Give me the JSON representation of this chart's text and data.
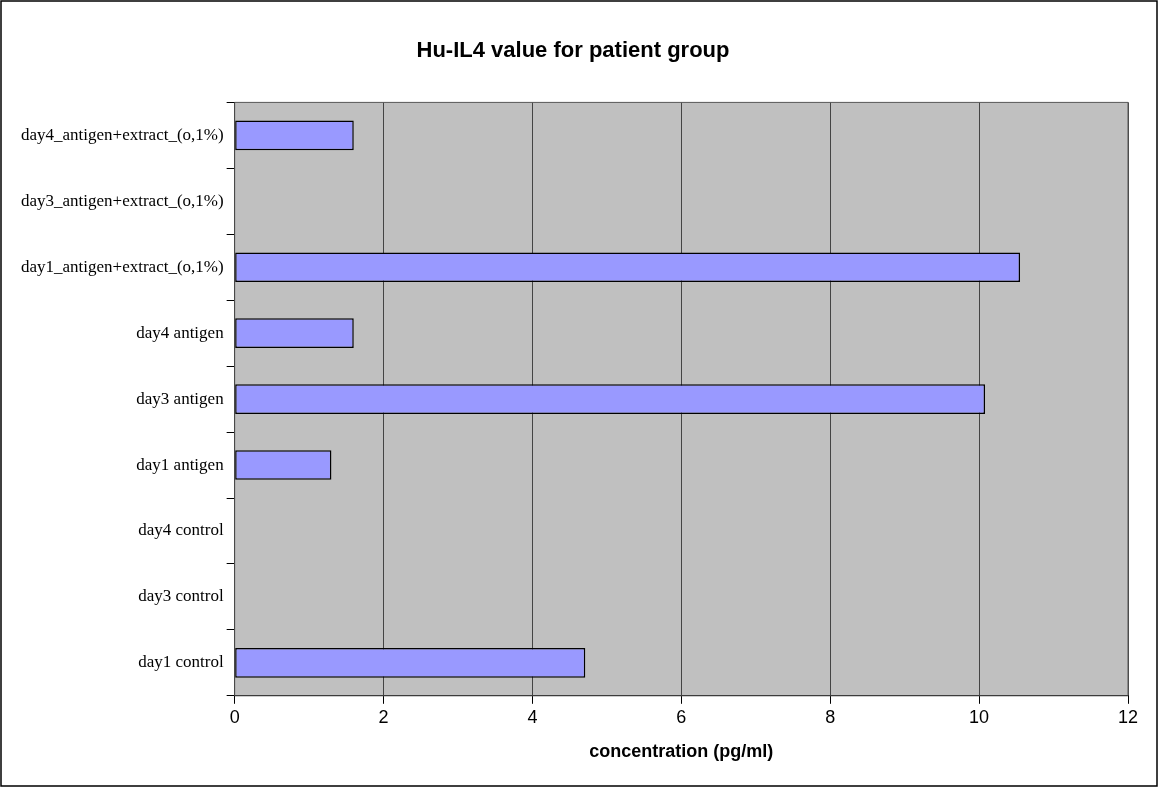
{
  "chart_data": {
    "type": "bar",
    "orientation": "horizontal",
    "title": "Hu-IL4 value for patient group",
    "xlabel": "concentration (pg/ml)",
    "categories": [
      "day4_antigen+extract_(o,1%)",
      "day3_antigen+extract_(o,1%)",
      "day1_antigen+extract_(o,1%)",
      "day4 antigen",
      "day3 antigen",
      "day1 antigen",
      "day4 control",
      "day3 control",
      "day1 control"
    ],
    "values": [
      1.6,
      0,
      10.55,
      1.6,
      10.08,
      1.3,
      0,
      0,
      4.71
    ],
    "color": "#9999ff",
    "xlim": [
      0,
      12
    ],
    "xticks": [
      0,
      2,
      4,
      6,
      8,
      10,
      12
    ],
    "grid": "x",
    "legend": false
  }
}
